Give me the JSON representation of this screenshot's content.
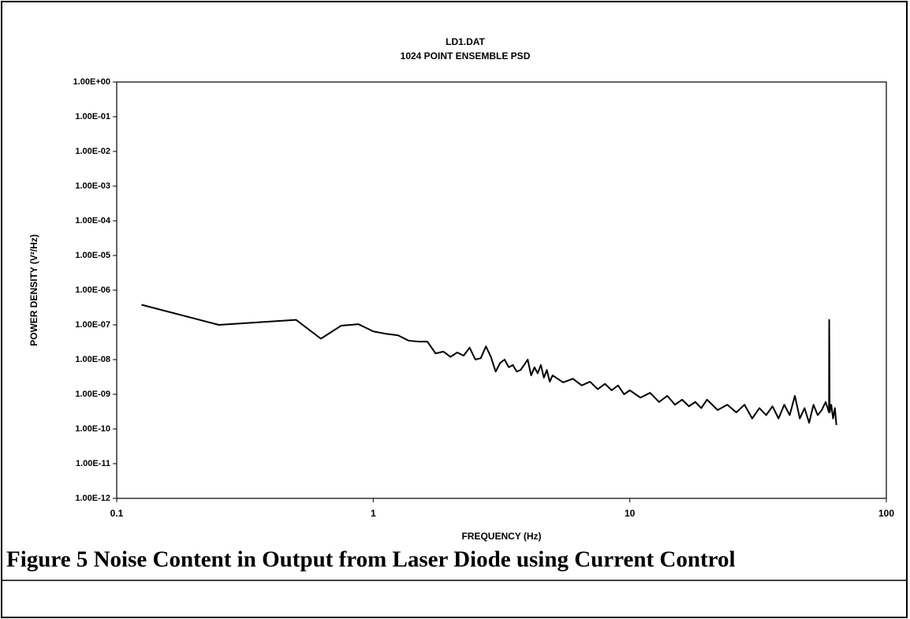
{
  "chart_data": {
    "type": "line",
    "title": "LD1.DAT",
    "subtitle": "1024 POINT ENSEMBLE PSD",
    "xlabel": "FREQUENCY (Hz)",
    "ylabel": "POWER DENSITY (V²/Hz)",
    "xscale": "log",
    "yscale": "log",
    "xlim": [
      0.1,
      100
    ],
    "xticks": [
      0.1,
      1,
      10,
      100
    ],
    "ylim": [
      1e-12,
      1
    ],
    "yticks": [
      {
        "value": 1,
        "label": "1.00E+00"
      },
      {
        "value": 0.1,
        "label": "1.00E-01"
      },
      {
        "value": 0.01,
        "label": "1.00E-02"
      },
      {
        "value": 0.001,
        "label": "1.00E-03"
      },
      {
        "value": 0.0001,
        "label": "1.00E-04"
      },
      {
        "value": 1e-05,
        "label": "1.00E-05"
      },
      {
        "value": 1e-06,
        "label": "1.00E-06"
      },
      {
        "value": 1e-07,
        "label": "1.00E-07"
      },
      {
        "value": 1e-08,
        "label": "1.00E-08"
      },
      {
        "value": 1e-09,
        "label": "1.00E-09"
      },
      {
        "value": 1e-10,
        "label": "1.00E-10"
      },
      {
        "value": 1e-11,
        "label": "1.00E-11"
      },
      {
        "value": 1e-12,
        "label": "1.00E-12"
      }
    ],
    "x": [
      0.125,
      0.25,
      0.5,
      0.625,
      0.75,
      0.875,
      1.0,
      1.125,
      1.25,
      1.375,
      1.5,
      1.625,
      1.75,
      1.875,
      2.0,
      2.125,
      2.25,
      2.375,
      2.5,
      2.625,
      2.75,
      2.875,
      3.0,
      3.125,
      3.25,
      3.375,
      3.5,
      3.625,
      3.75,
      3.875,
      4.0,
      4.125,
      4.25,
      4.375,
      4.5,
      4.625,
      4.75,
      4.875,
      5.0,
      5.5,
      6.0,
      6.5,
      7.0,
      7.5,
      8.0,
      8.5,
      9.0,
      9.5,
      10,
      11,
      12,
      13,
      14,
      15,
      16,
      17,
      18,
      19,
      20,
      22,
      24,
      26,
      28,
      30,
      32,
      34,
      36,
      38,
      40,
      42,
      44,
      46,
      48,
      50,
      52,
      54,
      56,
      58,
      59.75,
      59.875,
      60.125,
      61,
      62,
      63,
      63.875
    ],
    "series": [
      {
        "color": "#000000",
        "values": [
          3.8e-07,
          1e-07,
          1.4e-07,
          4e-08,
          9.5e-08,
          1.05e-07,
          6.5e-08,
          5.5e-08,
          5e-08,
          3.5e-08,
          3.3e-08,
          3.3e-08,
          1.5e-08,
          1.7e-08,
          1.2e-08,
          1.6e-08,
          1.3e-08,
          2.2e-08,
          1e-08,
          1.1e-08,
          2.4e-08,
          1.2e-08,
          4.5e-09,
          8e-09,
          1e-08,
          6e-09,
          7e-09,
          4.5e-09,
          5e-09,
          7e-09,
          1e-08,
          3.5e-09,
          6e-09,
          4e-09,
          7e-09,
          3e-09,
          5e-09,
          2.3e-09,
          3.5e-09,
          2.2e-09,
          2.8e-09,
          1.8e-09,
          2.3e-09,
          1.4e-09,
          2e-09,
          1.3e-09,
          1.8e-09,
          1e-09,
          1.3e-09,
          8e-10,
          1.1e-09,
          6e-10,
          9e-10,
          5e-10,
          7e-10,
          4.5e-10,
          6e-10,
          4e-10,
          7e-10,
          3.5e-10,
          5e-10,
          3e-10,
          5e-10,
          2e-10,
          4e-10,
          2.5e-10,
          4.5e-10,
          2e-10,
          5e-10,
          2.5e-10,
          9e-10,
          2e-10,
          4e-10,
          1.5e-10,
          5e-10,
          2.5e-10,
          3.5e-10,
          6e-10,
          3e-10,
          1.4e-07,
          3e-10,
          5e-10,
          2e-10,
          4e-10,
          1.3e-10
        ]
      }
    ]
  },
  "caption": "Figure 5  Noise Content in Output from Laser Diode using Current Control"
}
